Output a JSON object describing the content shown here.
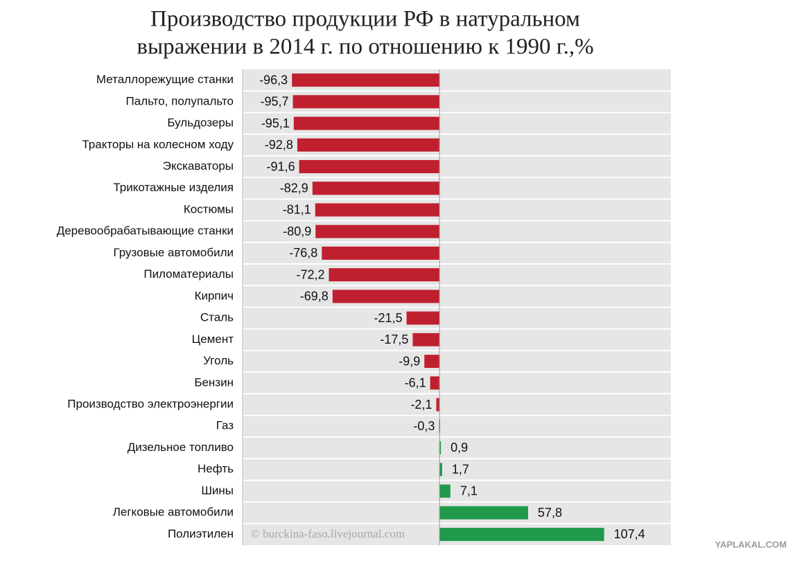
{
  "chart_data": {
    "type": "hbar",
    "title": [
      "Производство продукции РФ в натуральном",
      "выражении в 2014 г. по отношению к 1990 г.,%"
    ],
    "categories": [
      "Металлорежущие станки",
      "Пальто, полупальто",
      "Бульдозеры",
      "Тракторы на колесном ходу",
      "Экскаваторы",
      "Трикотажные изделия",
      "Костюмы",
      "Деревообрабатывающие  станки",
      "Грузовые автомобили",
      "Пиломатериалы",
      "Кирпич",
      "Сталь",
      "Цемент",
      "Уголь",
      "Бензин",
      "Производство электроэнергии",
      "Газ",
      "Дизельное топливо",
      "Нефть",
      "Шины",
      "Легковые автомобили",
      "Полиэтилен"
    ],
    "values": [
      -96.3,
      -95.7,
      -95.1,
      -92.8,
      -91.6,
      -82.9,
      -81.1,
      -80.9,
      -76.8,
      -72.2,
      -69.8,
      -21.5,
      -17.5,
      -9.9,
      -6.1,
      -2.1,
      -0.3,
      0.9,
      1.7,
      7.1,
      57.8,
      107.4
    ],
    "value_labels": [
      "-96,3",
      "-95,7",
      "-95,1",
      "-92,8",
      "-91,6",
      "-82,9",
      "-81,1",
      "-80,9",
      "-76,8",
      "-72,2",
      "-69,8",
      "-21,5",
      "-17,5",
      "-9,9",
      "-6,1",
      "-2,1",
      "-0,3",
      "0,9",
      "1,7",
      "7,1",
      "57,8",
      "107,4"
    ],
    "color_negative": "#c0202e",
    "color_positive": "#1f9a4a",
    "xlim": [
      -128.5,
      151
    ],
    "watermarks": [
      "© burckina-faso.livejournal.com",
      "YAPLAKAL.COM"
    ]
  }
}
